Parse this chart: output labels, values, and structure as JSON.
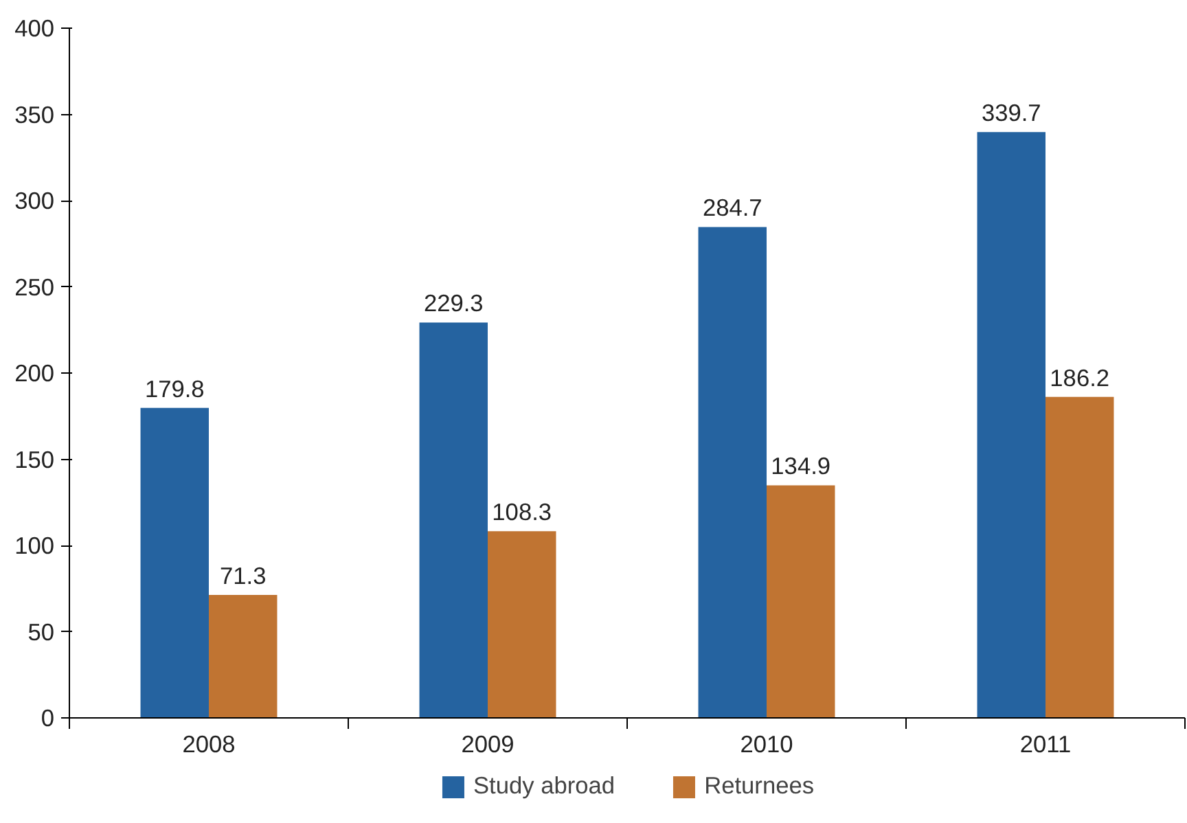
{
  "chart_data": {
    "type": "bar",
    "categories": [
      "2008",
      "2009",
      "2010",
      "2011"
    ],
    "series": [
      {
        "name": "Study abroad",
        "color": "#2563a0",
        "values": [
          179.8,
          229.3,
          284.7,
          339.7
        ]
      },
      {
        "name": "Returnees",
        "color": "#c07432",
        "values": [
          71.3,
          108.3,
          134.9,
          186.2
        ]
      }
    ],
    "ylim": [
      0,
      400
    ],
    "yticks": [
      0,
      50,
      100,
      150,
      200,
      250,
      300,
      350,
      400
    ],
    "data_labels": true,
    "grid": false,
    "legend": "bottom"
  }
}
